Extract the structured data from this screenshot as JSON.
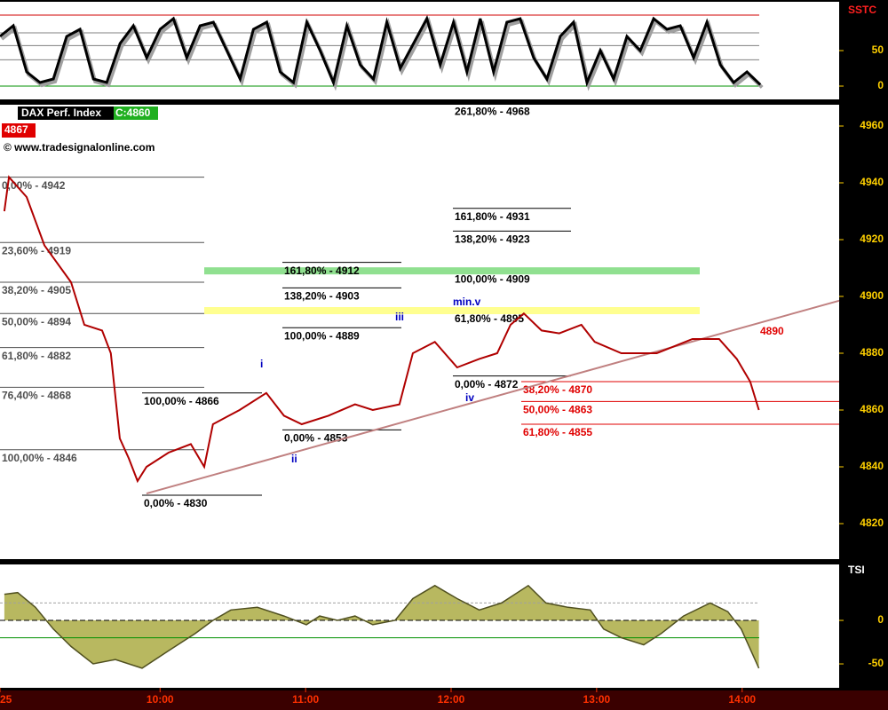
{
  "chart_data": [
    {
      "type": "oscillator",
      "title": "SSTC",
      "xlim": [
        534,
        880
      ],
      "ylim": [
        -18.75,
        118.75
      ],
      "yticks": [
        0,
        50
      ],
      "levels": [
        100,
        75,
        57,
        37,
        0
      ],
      "x": [
        534,
        539.5,
        545,
        550.5,
        556,
        561.5,
        567,
        572.5,
        578,
        583.5,
        589,
        594.5,
        600,
        605.5,
        611,
        616.5,
        622,
        627.5,
        633,
        638.5,
        644,
        649.5,
        655,
        660.5,
        666,
        671.5,
        677,
        682.5,
        688,
        693.5,
        699,
        704.5,
        710,
        715.5,
        721,
        726.5,
        732,
        737.5,
        743,
        748.5,
        754,
        759.5,
        765,
        770.5,
        776,
        781.5,
        787,
        792.5,
        798,
        803.5,
        809,
        814.5,
        820,
        825.5,
        831,
        836.5,
        842,
        847.5
      ],
      "series": [
        {
          "color": "#000000",
          "values": [
            70,
            85,
            20,
            5,
            10,
            70,
            80,
            10,
            5,
            60,
            85,
            40,
            80,
            95,
            40,
            85,
            90,
            50,
            10,
            80,
            90,
            20,
            5,
            90,
            50,
            5,
            85,
            30,
            10,
            90,
            25,
            60,
            95,
            30,
            90,
            20,
            95,
            20,
            90,
            95,
            40,
            10,
            70,
            90,
            5,
            50,
            10,
            70,
            50,
            95,
            80,
            85,
            40,
            90,
            30,
            5,
            20,
            2
          ]
        }
      ]
    },
    {
      "type": "line",
      "title": "DAX Perf. Index",
      "close_label": "C:4860",
      "price_tag": 4867,
      "watermark": "© www.tradesignalonline.com",
      "xlim": [
        534,
        880
      ],
      "ylim": [
        4807.5,
        4967.5
      ],
      "yticks": [
        4820,
        4840,
        4860,
        4880,
        4900,
        4920,
        4940,
        4960
      ],
      "xticks": [
        {
          "value": 534,
          "label": "25"
        },
        {
          "value": 600,
          "label": "10:00"
        },
        {
          "value": 660,
          "label": "11:00"
        },
        {
          "value": 720,
          "label": "12:00"
        },
        {
          "value": 780,
          "label": "13:00"
        },
        {
          "value": 840,
          "label": "14:00"
        }
      ],
      "x": [
        535.8,
        537.7,
        545,
        552.3,
        563.3,
        568.8,
        576.1,
        579.7,
        583.4,
        587.1,
        590.7,
        594.4,
        603.5,
        612.7,
        618.2,
        621.8,
        632.8,
        643.8,
        651.1,
        658.4,
        669.4,
        680.4,
        687.7,
        698.7,
        704.2,
        713.3,
        722.5,
        731.6,
        739,
        744.5,
        750,
        757.3,
        764.6,
        773.7,
        779.2,
        790.2,
        804.8,
        819.5,
        830.5,
        837.8,
        843.3,
        846.9
      ],
      "series": [
        {
          "color": "#b00000",
          "values": [
            4930,
            4942,
            4935,
            4918,
            4905,
            4890,
            4888,
            4880,
            4850,
            4843,
            4835,
            4840,
            4845,
            4848,
            4840,
            4855,
            4860,
            4866,
            4858,
            4855,
            4858,
            4862,
            4860,
            4862,
            4880,
            4884,
            4875,
            4878,
            4880,
            4890,
            4894,
            4888,
            4887,
            4890,
            4884,
            4880,
            4880,
            4885,
            4885,
            4878,
            4870,
            4860
          ]
        }
      ],
      "trendline": {
        "x": [
          594.4,
          880
        ],
        "values": [
          4830.6,
          4898.5
        ],
        "color": "#c08080"
      },
      "trend_value": 4890,
      "fib_groups": [
        {
          "color": "#505050",
          "levels": [
            {
              "label": "0,00% - 4942",
              "value": 4942
            },
            {
              "label": "23,60% - 4919",
              "value": 4919
            },
            {
              "label": "38,20% - 4905",
              "value": 4905
            },
            {
              "label": "50,00% - 4894",
              "value": 4894
            },
            {
              "label": "61,80% - 4882",
              "value": 4882
            },
            {
              "label": "76,40% - 4868",
              "value": 4868
            },
            {
              "label": "100,00% - 4846",
              "value": 4846
            }
          ]
        },
        {
          "color": "#000000",
          "levels": [
            {
              "label": "100,00% - 4866",
              "value": 4866
            },
            {
              "label": "0,00% - 4830",
              "value": 4830
            }
          ]
        },
        {
          "color": "#000000",
          "levels": [
            {
              "label": "161,80% - 4912",
              "value": 4912
            },
            {
              "label": "138,20% - 4903",
              "value": 4903
            },
            {
              "label": "100,00% - 4889",
              "value": 4889
            },
            {
              "label": "0,00% - 4853",
              "value": 4853
            }
          ]
        },
        {
          "color": "#000000",
          "levels": [
            {
              "label": "261,80% - 4968",
              "value": 4968
            },
            {
              "label": "161,80% - 4931",
              "value": 4931
            },
            {
              "label": "138,20% - 4923",
              "value": 4923
            },
            {
              "label": "100,00% - 4909",
              "value": 4909,
              "band": "#90e090"
            },
            {
              "label": "61,80% - 4895",
              "value": 4895,
              "band": "#ffff90"
            },
            {
              "label": "0,00% - 4872",
              "value": 4872
            }
          ]
        },
        {
          "color": "#e00000",
          "levels": [
            {
              "label": "38,20% - 4870",
              "value": 4870
            },
            {
              "label": "50,00% - 4863",
              "value": 4863
            },
            {
              "label": "61,80% - 4855",
              "value": 4855
            }
          ]
        }
      ],
      "wave_labels": [
        "i",
        "ii",
        "iii",
        "iv",
        "min.v"
      ]
    },
    {
      "type": "area",
      "title": "TSI",
      "xlim": [
        534,
        880
      ],
      "ylim": [
        -77.5,
        64.3
      ],
      "yticks": [
        0,
        -50
      ],
      "levels": [
        20,
        0,
        -20
      ],
      "x": [
        535.8,
        541.3,
        548.6,
        556,
        563.3,
        572.4,
        581.6,
        592.6,
        603.5,
        614.5,
        621.8,
        629.2,
        640.1,
        651.1,
        660.3,
        665.8,
        673.1,
        680.4,
        687.7,
        696.9,
        704.2,
        713.3,
        722.5,
        731.6,
        740.8,
        751.8,
        759.1,
        768.2,
        777.4,
        782.9,
        790.2,
        799.4,
        806.7,
        815.8,
        826.8,
        834.1,
        839.6,
        846.9
      ],
      "series": [
        {
          "color": "#505020",
          "values": [
            30,
            32,
            15,
            -10,
            -30,
            -50,
            -45,
            -55,
            -35,
            -15,
            0,
            12,
            15,
            5,
            -5,
            5,
            0,
            5,
            -5,
            0,
            25,
            40,
            25,
            12,
            20,
            40,
            20,
            15,
            12,
            -10,
            -20,
            -28,
            -15,
            5,
            20,
            10,
            -10,
            -55
          ]
        }
      ]
    }
  ]
}
